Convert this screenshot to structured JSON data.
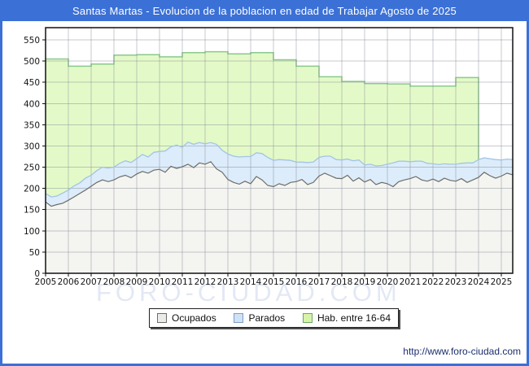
{
  "window": {
    "title": "Santas Martas - Evolucion de la poblacion en edad de Trabajar Agosto de 2025",
    "footer_url": "http://www.foro-ciudad.com",
    "watermark": "FORO-CIUDAD.COM",
    "accent_color": "#3b70d6"
  },
  "chart_data": {
    "type": "area",
    "title": "Santas Martas - Evolucion de la poblacion en edad de Trabajar Agosto de 2025",
    "xlabel": "",
    "ylabel": "",
    "xlim": [
      2005,
      2025.5
    ],
    "ylim": [
      0,
      550
    ],
    "grid": true,
    "legend_position": "bottom",
    "x_ticks": [
      2005,
      2006,
      2007,
      2008,
      2009,
      2010,
      2011,
      2012,
      2013,
      2014,
      2015,
      2016,
      2017,
      2018,
      2019,
      2020,
      2021,
      2022,
      2023,
      2024,
      2025
    ],
    "y_ticks": [
      0,
      50,
      100,
      150,
      200,
      250,
      300,
      350,
      400,
      450,
      500,
      550
    ],
    "legend": [
      {
        "label": "Ocupados",
        "fill": "#ebebe8",
        "stroke": "#6d6d6a"
      },
      {
        "label": "Parados",
        "fill": "#cfe2f6",
        "stroke": "#7d9ec7"
      },
      {
        "label": "Hab. entre 16-64",
        "fill": "#d6f4a8",
        "stroke": "#6aa85f"
      }
    ],
    "series": [
      {
        "name": "Hab. entre 16-64",
        "mode": "step-yearly",
        "x_start": 2005,
        "x_end": 2024,
        "fill": "#e3fac8",
        "stroke": "#8bc98b",
        "values": [
          505,
          488,
          493,
          514,
          515,
          510,
          520,
          522,
          517,
          520,
          503,
          488,
          463,
          452,
          447,
          446,
          441,
          441,
          461
        ]
      },
      {
        "name": "Parados",
        "mode": "band-above",
        "base": "Ocupados",
        "x_start": 2005,
        "dx": 0.25,
        "fill": "#dcecfa",
        "stroke": "#a2c4e6",
        "values": [
          20,
          22,
          20,
          24,
          24,
          26,
          25,
          28,
          26,
          28,
          30,
          32,
          30,
          32,
          34,
          36,
          36,
          40,
          38,
          42,
          42,
          50,
          46,
          55,
          46,
          52,
          55,
          48,
          48,
          45,
          58,
          52,
          60,
          62,
          64,
          58,
          64,
          56,
          62,
          66,
          62,
          57,
          60,
          52,
          46,
          41,
          52,
          48,
          44,
          40,
          46,
          44,
          44,
          38,
          48,
          42,
          40,
          36,
          44,
          40,
          46,
          56,
          48,
          44,
          40,
          36,
          44,
          42,
          36,
          40,
          34,
          38,
          40,
          36,
          46,
          40,
          42,
          34,
          40,
          44,
          38,
          33,
          36
        ]
      },
      {
        "name": "Ocupados",
        "mode": "area",
        "x_start": 2005,
        "dx": 0.25,
        "fill": "#f4f4f1",
        "stroke": "#6d6d6a",
        "values": [
          168,
          158,
          162,
          165,
          172,
          180,
          188,
          196,
          205,
          214,
          220,
          216,
          220,
          227,
          231,
          225,
          234,
          240,
          236,
          243,
          245,
          238,
          252,
          247,
          251,
          257,
          249,
          260,
          257,
          263,
          246,
          238,
          221,
          214,
          210,
          217,
          211,
          228,
          220,
          207,
          204,
          211,
          207,
          214,
          216,
          221,
          209,
          214,
          229,
          236,
          230,
          224,
          223,
          231,
          217,
          225,
          215,
          221,
          209,
          214,
          211,
          204,
          216,
          220,
          223,
          228,
          220,
          217,
          222,
          216,
          224,
          219,
          217,
          223,
          214,
          220,
          226,
          238,
          230,
          224,
          229,
          236,
          232
        ]
      }
    ]
  }
}
